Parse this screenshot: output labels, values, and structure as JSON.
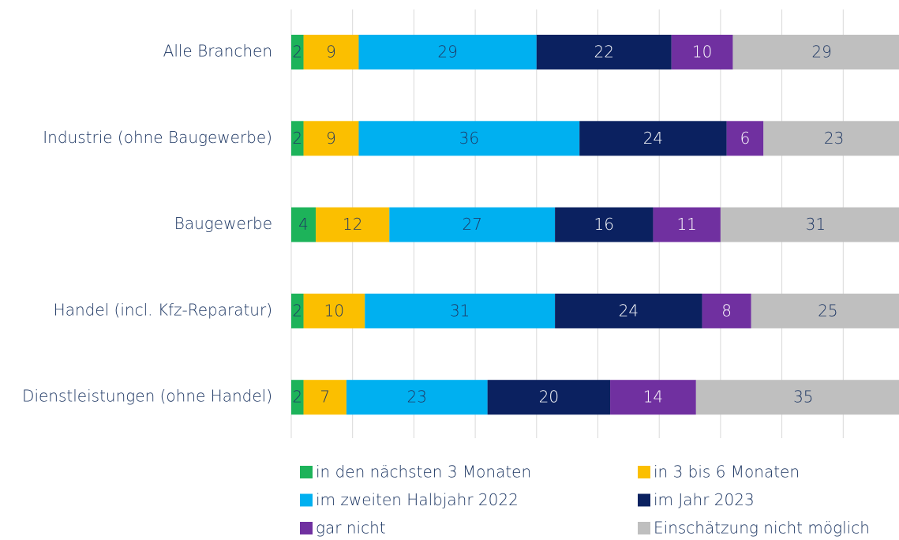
{
  "chart_data": {
    "type": "stacked-barh",
    "categories": [
      "Alle Branchen",
      "Industrie (ohne Baugewerbe)",
      "Baugewerbe",
      "Handel (incl. Kfz-Reparatur)",
      "Dienstleistungen (ohne Handel)"
    ],
    "series": [
      {
        "name": "in den nächsten 3 Monaten",
        "color": "#1db35a",
        "values": [
          2,
          2,
          4,
          2,
          2
        ]
      },
      {
        "name": "in 3 bis 6 Monaten",
        "color": "#fbbf00",
        "values": [
          9,
          9,
          12,
          10,
          7
        ]
      },
      {
        "name": "im zweiten Halbjahr 2022",
        "color": "#00b0f0",
        "values": [
          29,
          36,
          27,
          31,
          23
        ]
      },
      {
        "name": "im Jahr 2023",
        "color": "#0b2160",
        "values": [
          22,
          24,
          16,
          24,
          20
        ]
      },
      {
        "name": "gar nicht",
        "color": "#7030a0",
        "values": [
          10,
          6,
          11,
          8,
          14
        ]
      },
      {
        "name": "Einschätzung nicht möglich",
        "color": "#bfbfbf",
        "values": [
          29,
          23,
          31,
          25,
          35
        ]
      }
    ],
    "xlim": [
      0,
      100
    ],
    "xticks": [
      0,
      10,
      20,
      30,
      40,
      50,
      60,
      70,
      80,
      90,
      100
    ],
    "grid": true
  }
}
